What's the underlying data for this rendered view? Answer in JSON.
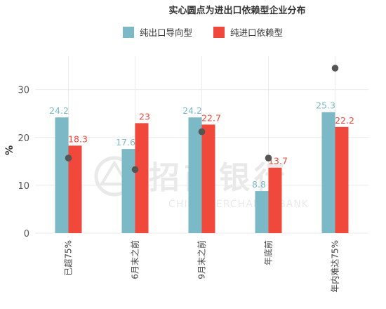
{
  "chart_data": {
    "type": "bar",
    "title": "实心圆点为进出口依赖型企业分布",
    "ylabel": "%",
    "xlabel": "",
    "ylim": [
      0,
      37
    ],
    "yticks": [
      0,
      10,
      20,
      30
    ],
    "grid": true,
    "legend_position": "top-center",
    "categories": [
      "已超75%",
      "6月末之前",
      "9月末之前",
      "年底前",
      "年内难达75%"
    ],
    "series": [
      {
        "name": "纯出口导向型",
        "color": "#7bb9c6",
        "values": [
          24.2,
          17.6,
          24.2,
          8.8,
          25.3
        ],
        "labels": [
          "24.2",
          "17.6",
          "24.2",
          "8.8",
          "25.3"
        ]
      },
      {
        "name": "纯进口依赖型",
        "color": "#f0483a",
        "values": [
          18.3,
          23,
          22.7,
          13.7,
          22.2
        ],
        "labels": [
          "18.3",
          "23",
          "22.7",
          "13.7",
          "22.2"
        ]
      }
    ],
    "dot_series": {
      "color": "#555555",
      "values": [
        15.7,
        13.3,
        21.2,
        15.7,
        34.5
      ]
    }
  },
  "watermark": {
    "text_cn": "招商银行",
    "text_en": "CHINA MERCHANTS BANK"
  }
}
